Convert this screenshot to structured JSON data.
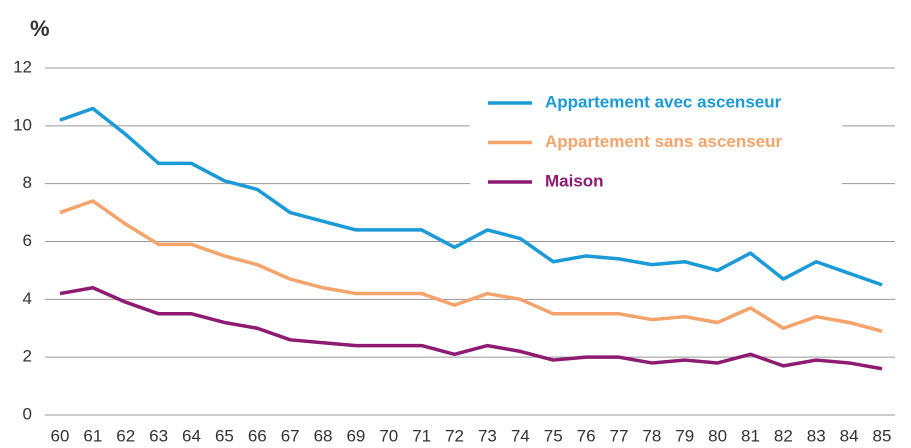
{
  "chart_data": {
    "type": "line",
    "y_label": "%",
    "categories": [
      "60",
      "61",
      "62",
      "63",
      "64",
      "65",
      "66",
      "67",
      "68",
      "69",
      "70",
      "71",
      "72",
      "73",
      "74",
      "75",
      "76",
      "77",
      "78",
      "79",
      "80",
      "81",
      "82",
      "83",
      "84",
      "85"
    ],
    "series": [
      {
        "name": "Appartement avec ascenseur",
        "color": "#1a9ad6",
        "values": [
          10.2,
          10.6,
          9.7,
          8.7,
          8.7,
          8.1,
          7.8,
          7.0,
          6.7,
          6.4,
          6.4,
          6.4,
          5.8,
          6.4,
          6.1,
          5.3,
          5.5,
          5.4,
          5.2,
          5.3,
          5.0,
          5.6,
          4.7,
          5.3,
          4.9,
          4.5
        ]
      },
      {
        "name": "Appartement sans ascenseur",
        "color": "#f4a46a",
        "values": [
          7.0,
          7.4,
          6.6,
          5.9,
          5.9,
          5.5,
          5.2,
          4.7,
          4.4,
          4.2,
          4.2,
          4.2,
          3.8,
          4.2,
          4.0,
          3.5,
          3.5,
          3.5,
          3.3,
          3.4,
          3.2,
          3.7,
          3.0,
          3.4,
          3.2,
          2.9
        ]
      },
      {
        "name": "Maison",
        "color": "#8e1a72",
        "values": [
          4.2,
          4.4,
          3.9,
          3.5,
          3.5,
          3.2,
          3.0,
          2.6,
          2.5,
          2.4,
          2.4,
          2.4,
          2.1,
          2.4,
          2.2,
          1.9,
          2.0,
          2.0,
          1.8,
          1.9,
          1.8,
          2.1,
          1.7,
          1.9,
          1.8,
          1.6
        ]
      }
    ],
    "ylim": [
      0,
      12
    ],
    "yticks": [
      0,
      2,
      4,
      6,
      8,
      10,
      12
    ],
    "grid": true,
    "legend": "top-right"
  }
}
